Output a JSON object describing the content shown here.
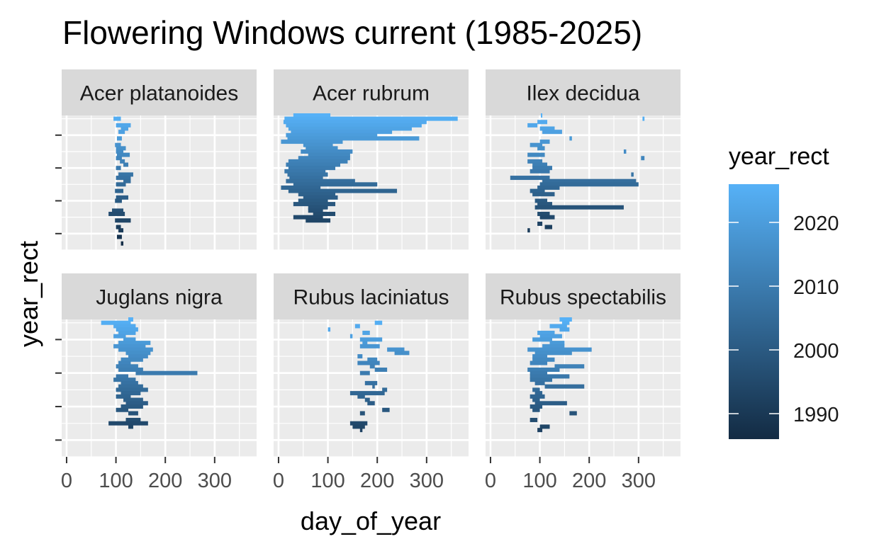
{
  "chart_data": {
    "type": "faceted-range-bar",
    "title": "Flowering Windows current (1985-2025)",
    "xlabel": "day_of_year",
    "ylabel": "year_rect",
    "x_ticks": [
      0,
      100,
      200,
      300
    ],
    "xlim": [
      -10,
      385
    ],
    "ylim": [
      1985,
      2026
    ],
    "y_ticks_unlabeled": [
      1990,
      2000,
      2010,
      2020
    ],
    "grid": true,
    "legend": {
      "title": "year_rect",
      "position": "right",
      "ticks": [
        1990,
        2000,
        2010,
        2020
      ],
      "color_low": "#132b43",
      "color_high": "#56b1f7",
      "range": [
        1986,
        2026
      ]
    },
    "facets": [
      {
        "name": "Acer platanoides",
        "segments": [
          [
            2025,
            95,
            110
          ],
          [
            2023,
            100,
            130
          ],
          [
            2022,
            110,
            125
          ],
          [
            2021,
            105,
            118
          ],
          [
            2019,
            102,
            112
          ],
          [
            2017,
            98,
            110
          ],
          [
            2016,
            100,
            120
          ],
          [
            2015,
            100,
            115
          ],
          [
            2014,
            102,
            128
          ],
          [
            2013,
            100,
            112
          ],
          [
            2012,
            108,
            118
          ],
          [
            2011,
            115,
            125
          ],
          [
            2010,
            100,
            110
          ],
          [
            2008,
            105,
            135
          ],
          [
            2007,
            100,
            130
          ],
          [
            2006,
            115,
            130
          ],
          [
            2005,
            100,
            120
          ],
          [
            2003,
            98,
            115
          ],
          [
            2001,
            100,
            125
          ],
          [
            2000,
            98,
            112
          ],
          [
            1997,
            92,
            115
          ],
          [
            1996,
            85,
            118
          ],
          [
            1994,
            98,
            130
          ],
          [
            1992,
            100,
            110
          ],
          [
            1991,
            105,
            115
          ],
          [
            1989,
            102,
            112
          ],
          [
            1987,
            110,
            115
          ]
        ]
      },
      {
        "name": "Acer rubrum",
        "segments": [
          [
            2026,
            30,
            105
          ],
          [
            2025,
            12,
            363
          ],
          [
            2024,
            10,
            300
          ],
          [
            2023,
            15,
            290
          ],
          [
            2022,
            20,
            270
          ],
          [
            2021,
            25,
            230
          ],
          [
            2020,
            15,
            200
          ],
          [
            2019,
            18,
            285
          ],
          [
            2018,
            5,
            130
          ],
          [
            2017,
            50,
            110
          ],
          [
            2016,
            55,
            120
          ],
          [
            2015,
            45,
            150
          ],
          [
            2014,
            60,
            145
          ],
          [
            2013,
            40,
            145
          ],
          [
            2012,
            20,
            140
          ],
          [
            2011,
            15,
            125
          ],
          [
            2010,
            20,
            115
          ],
          [
            2009,
            12,
            95
          ],
          [
            2008,
            18,
            100
          ],
          [
            2007,
            22,
            90
          ],
          [
            2006,
            15,
            155
          ],
          [
            2005,
            30,
            200
          ],
          [
            2004,
            5,
            85
          ],
          [
            2003,
            20,
            240
          ],
          [
            2002,
            40,
            115
          ],
          [
            2001,
            50,
            120
          ],
          [
            2000,
            40,
            100
          ],
          [
            1999,
            30,
            115
          ],
          [
            1998,
            60,
            100
          ],
          [
            1997,
            60,
            90
          ],
          [
            1996,
            70,
            115
          ],
          [
            1995,
            30,
            90
          ],
          [
            1994,
            55,
            105
          ]
        ]
      },
      {
        "name": "Ilex decidua",
        "segments": [
          [
            2026,
            102,
            105
          ],
          [
            2025,
            308,
            312
          ],
          [
            2024,
            95,
            115
          ],
          [
            2023,
            75,
            95
          ],
          [
            2022,
            100,
            130
          ],
          [
            2021,
            105,
            145
          ],
          [
            2019,
            160,
            165
          ],
          [
            2018,
            100,
            120
          ],
          [
            2017,
            80,
            105
          ],
          [
            2016,
            95,
            110
          ],
          [
            2015,
            270,
            275
          ],
          [
            2014,
            75,
            110
          ],
          [
            2013,
            305,
            312
          ],
          [
            2012,
            75,
            105
          ],
          [
            2011,
            85,
            115
          ],
          [
            2010,
            85,
            125
          ],
          [
            2009,
            80,
            120
          ],
          [
            2008,
            285,
            290
          ],
          [
            2007,
            40,
            120
          ],
          [
            2006,
            105,
            295
          ],
          [
            2005,
            100,
            300
          ],
          [
            2004,
            95,
            140
          ],
          [
            2003,
            80,
            110
          ],
          [
            2002,
            85,
            130
          ],
          [
            2000,
            90,
            115
          ],
          [
            1999,
            95,
            125
          ],
          [
            1998,
            90,
            270
          ],
          [
            1996,
            95,
            120
          ],
          [
            1995,
            100,
            130
          ],
          [
            1993,
            95,
            105
          ],
          [
            1992,
            110,
            125
          ],
          [
            1991,
            75,
            80
          ]
        ]
      },
      {
        "name": "Juglans nigra",
        "segments": [
          [
            2026,
            125,
            135
          ],
          [
            2025,
            70,
            130
          ],
          [
            2024,
            95,
            140
          ],
          [
            2023,
            100,
            145
          ],
          [
            2022,
            105,
            140
          ],
          [
            2021,
            95,
            120
          ],
          [
            2020,
            115,
            140
          ],
          [
            2019,
            105,
            170
          ],
          [
            2018,
            95,
            160
          ],
          [
            2017,
            105,
            175
          ],
          [
            2016,
            120,
            170
          ],
          [
            2015,
            125,
            165
          ],
          [
            2014,
            110,
            155
          ],
          [
            2013,
            105,
            130
          ],
          [
            2012,
            100,
            145
          ],
          [
            2011,
            105,
            155
          ],
          [
            2010,
            140,
            265
          ],
          [
            2009,
            100,
            125
          ],
          [
            2008,
            95,
            140
          ],
          [
            2007,
            110,
            145
          ],
          [
            2006,
            105,
            155
          ],
          [
            2005,
            100,
            165
          ],
          [
            2004,
            110,
            150
          ],
          [
            2003,
            100,
            130
          ],
          [
            2002,
            115,
            155
          ],
          [
            2001,
            120,
            165
          ],
          [
            2000,
            110,
            155
          ],
          [
            1999,
            100,
            125
          ],
          [
            1998,
            125,
            145
          ],
          [
            1996,
            120,
            150
          ],
          [
            1995,
            85,
            165
          ],
          [
            1994,
            125,
            135
          ]
        ]
      },
      {
        "name": "Rubus laciniatus",
        "segments": [
          [
            2025,
            195,
            210
          ],
          [
            2024,
            155,
            165
          ],
          [
            2023,
            100,
            105
          ],
          [
            2022,
            170,
            185
          ],
          [
            2021,
            145,
            150
          ],
          [
            2020,
            165,
            210
          ],
          [
            2019,
            170,
            180
          ],
          [
            2018,
            165,
            205
          ],
          [
            2017,
            220,
            255
          ],
          [
            2016,
            235,
            265
          ],
          [
            2015,
            160,
            170
          ],
          [
            2014,
            180,
            200
          ],
          [
            2013,
            160,
            205
          ],
          [
            2012,
            185,
            195
          ],
          [
            2011,
            195,
            220
          ],
          [
            2010,
            165,
            185
          ],
          [
            2007,
            175,
            200
          ],
          [
            2006,
            190,
            195
          ],
          [
            2005,
            210,
            220
          ],
          [
            2004,
            145,
            215
          ],
          [
            2003,
            160,
            175
          ],
          [
            2002,
            175,
            185
          ],
          [
            2001,
            180,
            195
          ],
          [
            1999,
            210,
            225
          ],
          [
            1998,
            165,
            175
          ],
          [
            1995,
            145,
            180
          ],
          [
            1994,
            150,
            175
          ],
          [
            1993,
            165,
            170
          ]
        ]
      },
      {
        "name": "Rubus spectabilis",
        "segments": [
          [
            2026,
            140,
            165
          ],
          [
            2025,
            145,
            160
          ],
          [
            2024,
            120,
            155
          ],
          [
            2023,
            140,
            160
          ],
          [
            2022,
            95,
            130
          ],
          [
            2021,
            100,
            145
          ],
          [
            2020,
            85,
            125
          ],
          [
            2019,
            120,
            150
          ],
          [
            2018,
            105,
            150
          ],
          [
            2017,
            75,
            205
          ],
          [
            2016,
            90,
            165
          ],
          [
            2015,
            85,
            115
          ],
          [
            2014,
            85,
            130
          ],
          [
            2013,
            80,
            115
          ],
          [
            2012,
            130,
            190
          ],
          [
            2011,
            75,
            140
          ],
          [
            2010,
            80,
            115
          ],
          [
            2009,
            80,
            160
          ],
          [
            2008,
            80,
            125
          ],
          [
            2007,
            90,
            110
          ],
          [
            2006,
            110,
            190
          ],
          [
            2005,
            85,
            100
          ],
          [
            2004,
            90,
            105
          ],
          [
            2003,
            80,
            110
          ],
          [
            2002,
            85,
            100
          ],
          [
            2001,
            90,
            155
          ],
          [
            2000,
            80,
            105
          ],
          [
            1999,
            85,
            100
          ],
          [
            1998,
            160,
            175
          ],
          [
            1996,
            80,
            95
          ],
          [
            1994,
            100,
            120
          ],
          [
            1993,
            95,
            105
          ]
        ]
      }
    ]
  }
}
